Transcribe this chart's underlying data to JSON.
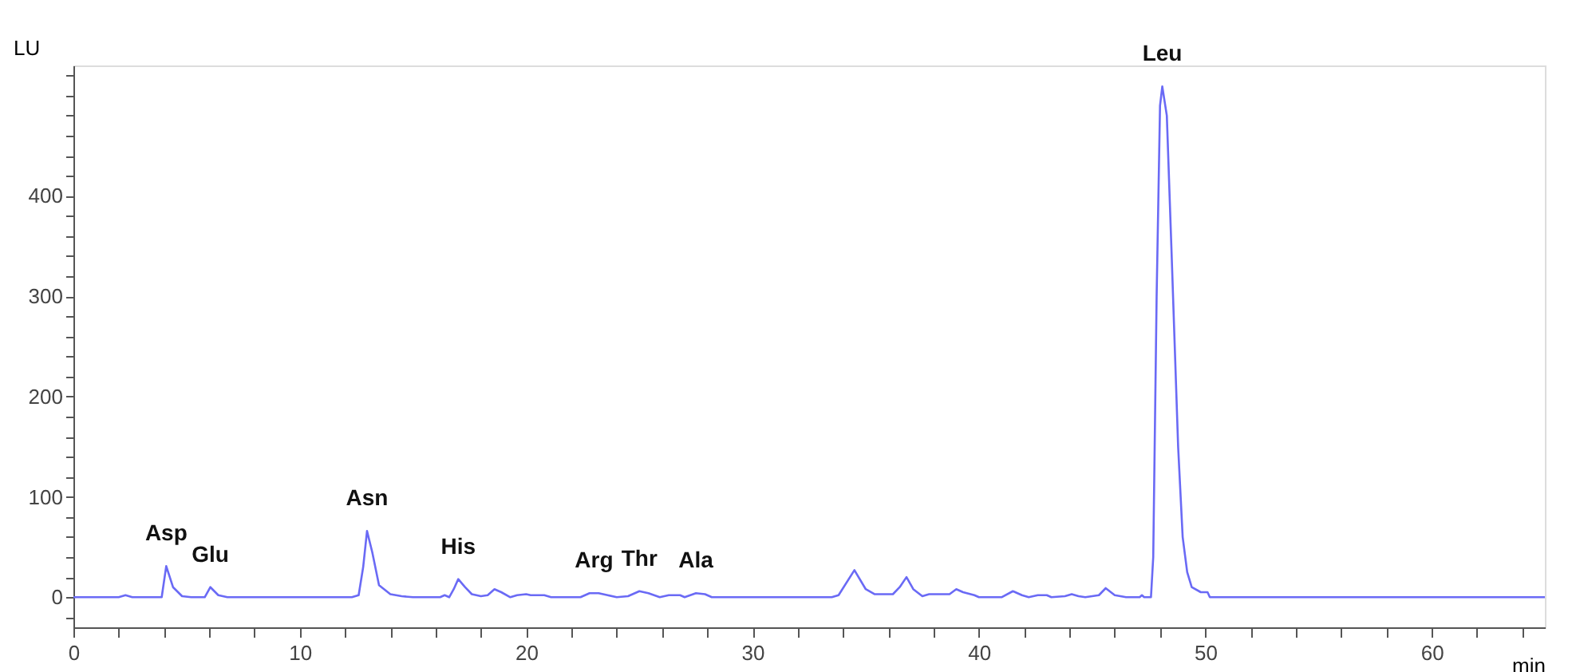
{
  "chart_data": {
    "type": "line",
    "xlabel": "min",
    "ylabel": "LU",
    "x": [
      0,
      2.0,
      2.3,
      2.6,
      3.9,
      4.1,
      4.4,
      4.8,
      5.2,
      5.8,
      6.05,
      6.4,
      6.8,
      12.3,
      12.6,
      12.8,
      12.97,
      13.2,
      13.5,
      14.0,
      14.5,
      15,
      16.2,
      16.4,
      16.6,
      16.8,
      17.0,
      17.3,
      17.6,
      18.0,
      18.3,
      18.6,
      18.9,
      19.3,
      19.6,
      20.0,
      20.2,
      20.8,
      21.1,
      22.4,
      22.8,
      23.2,
      23.6,
      24.0,
      24.5,
      25.0,
      25.4,
      25.9,
      26.3,
      26.8,
      27.0,
      27.5,
      27.9,
      28.2,
      33.5,
      33.8,
      34.5,
      35.0,
      35.4,
      36.2,
      36.5,
      36.8,
      37.1,
      37.5,
      37.8,
      38.0,
      38.7,
      39.0,
      39.3,
      39.8,
      40.0,
      41.0,
      41.5,
      41.9,
      42.2,
      42.6,
      43.0,
      43.2,
      43.8,
      44.1,
      44.4,
      44.7,
      45.3,
      45.6,
      46.0,
      46.5,
      47.1,
      47.2,
      47.3,
      47.6,
      47.7,
      47.85,
      48.0,
      48.1,
      48.3,
      48.5,
      48.8,
      49.0,
      49.2,
      49.4,
      49.8,
      50.1,
      50.2,
      65
    ],
    "series": [
      {
        "color": "#6a6af5",
        "values": [
          0,
          0,
          2,
          0,
          0,
          31,
          10,
          1,
          0,
          0,
          10,
          2,
          0,
          0,
          2,
          30,
          66,
          45,
          12,
          3,
          1,
          0,
          0,
          2,
          0,
          8,
          18,
          10,
          3,
          1,
          2,
          8,
          5,
          0,
          2,
          3,
          2,
          2,
          0,
          0,
          4,
          4,
          2,
          0,
          1,
          6,
          4,
          0,
          2,
          2,
          0,
          4,
          3,
          0,
          0,
          2,
          27,
          8,
          3,
          3,
          10,
          20,
          8,
          1,
          3,
          3,
          3,
          8,
          5,
          2,
          0,
          0,
          6,
          2,
          0,
          2,
          2,
          0,
          1,
          3,
          1,
          0,
          2,
          9,
          2,
          0,
          0,
          2,
          0,
          0,
          40,
          300,
          490,
          509,
          480,
          350,
          150,
          60,
          25,
          10,
          5,
          5,
          0,
          0
        ]
      }
    ],
    "xlim": [
      0,
      65
    ],
    "ylim": [
      -30,
      530
    ],
    "xticks": [
      0,
      {
        "value": 2,
        "label": null
      },
      {
        "value": 4,
        "label": null
      },
      {
        "value": 6,
        "label": null
      },
      {
        "value": 8,
        "label": null
      },
      10,
      {
        "value": 12,
        "label": null
      },
      {
        "value": 14,
        "label": null
      },
      {
        "value": 16,
        "label": null
      },
      {
        "value": 18,
        "label": null
      },
      20,
      {
        "value": 22,
        "label": null
      },
      {
        "value": 24,
        "label": null
      },
      {
        "value": 26,
        "label": null
      },
      {
        "value": 28,
        "label": null
      },
      30,
      {
        "value": 32,
        "label": null
      },
      {
        "value": 34,
        "label": null
      },
      {
        "value": 36,
        "label": null
      },
      {
        "value": 38,
        "label": null
      },
      40,
      {
        "value": 42,
        "label": null
      },
      {
        "value": 44,
        "label": null
      },
      {
        "value": 46,
        "label": null
      },
      {
        "value": 48,
        "label": null
      },
      50,
      {
        "value": 52,
        "label": null
      },
      {
        "value": 54,
        "label": null
      },
      {
        "value": 56,
        "label": null
      },
      {
        "value": 58,
        "label": null
      },
      60,
      {
        "value": 62,
        "label": null
      },
      {
        "value": 64,
        "label": null
      }
    ],
    "yticks": [
      {
        "value": -20,
        "label": null
      },
      0,
      {
        "value": 20,
        "label": null
      },
      {
        "value": 40,
        "label": null
      },
      {
        "value": 60,
        "label": null
      },
      {
        "value": 80,
        "label": null
      },
      100,
      {
        "value": 120,
        "label": null
      },
      {
        "value": 140,
        "label": null
      },
      {
        "value": 160,
        "label": null
      },
      {
        "value": 180,
        "label": null
      },
      200,
      {
        "value": 220,
        "label": null
      },
      {
        "value": 240,
        "label": null
      },
      {
        "value": 260,
        "label": null
      },
      {
        "value": 280,
        "label": null
      },
      300,
      {
        "value": 320,
        "label": null
      },
      {
        "value": 340,
        "label": null
      },
      {
        "value": 360,
        "label": null
      },
      {
        "value": 380,
        "label": null
      },
      400,
      {
        "value": 420,
        "label": null
      },
      {
        "value": 440,
        "label": null
      },
      {
        "value": 460,
        "label": null
      },
      {
        "value": 480,
        "label": null
      },
      {
        "value": 500,
        "label": null
      },
      {
        "value": 520,
        "label": null
      }
    ],
    "annotations": [
      {
        "text": "Asp",
        "x": 4.1,
        "y": 31
      },
      {
        "text": "Glu",
        "x": 6.05,
        "y": 10
      },
      {
        "text": "Asn",
        "x": 12.97,
        "y": 66
      },
      {
        "text": "His",
        "x": 17.0,
        "y": 18
      },
      {
        "text": "Arg",
        "x": 23.0,
        "y": 4
      },
      {
        "text": "Thr",
        "x": 25.0,
        "y": 6
      },
      {
        "text": "Ala",
        "x": 27.5,
        "y": 4
      },
      {
        "text": "Leu",
        "x": 48.1,
        "y": 509
      }
    ],
    "grid": false,
    "legend": false,
    "marker": "none",
    "line_style": "solid"
  }
}
